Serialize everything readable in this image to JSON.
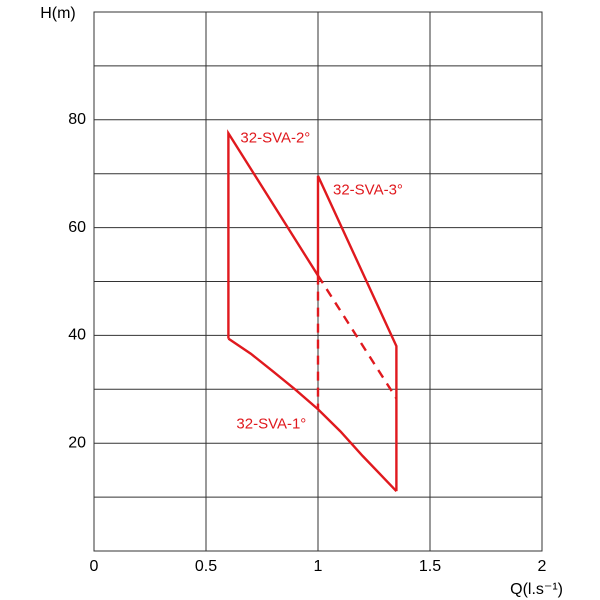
{
  "chart_data": {
    "type": "line",
    "xlabel": "Q(l.s⁻¹)",
    "ylabel": "H(m)",
    "xlim": [
      0,
      2
    ],
    "xticks": [
      0,
      0.5,
      1,
      1.5,
      2
    ],
    "ylim": [
      0,
      100
    ],
    "yticks": [
      20,
      40,
      60,
      80
    ],
    "ygrid": [
      10,
      20,
      30,
      40,
      50,
      60,
      70,
      80,
      90
    ],
    "grid": true,
    "color": "#e0191e",
    "series": [
      {
        "name": "32-SVA-1°",
        "dashed": false,
        "x": [
          0.6,
          0.7,
          0.8,
          0.9,
          1.0,
          1.1,
          1.2,
          1.35
        ],
        "values": [
          39.4,
          36.6,
          33.3,
          29.9,
          26.3,
          22.2,
          17.6,
          11.1
        ]
      },
      {
        "name": "32-SVA-2°",
        "dashed": false,
        "x": [
          0.6,
          0.6,
          1.0
        ],
        "values": [
          39.4,
          77.5,
          51.1
        ]
      },
      {
        "name": "32-SVA-3°",
        "dashed": false,
        "x": [
          1.0,
          1.0,
          1.35,
          1.35
        ],
        "values": [
          51.1,
          69.6,
          38.0,
          11.1
        ]
      },
      {
        "dashed": true,
        "x": [
          1.0,
          1.35
        ],
        "values": [
          51.1,
          28.3
        ]
      },
      {
        "dashed": true,
        "x": [
          1.0,
          1.0
        ],
        "values": [
          51.1,
          26.3
        ]
      }
    ]
  }
}
